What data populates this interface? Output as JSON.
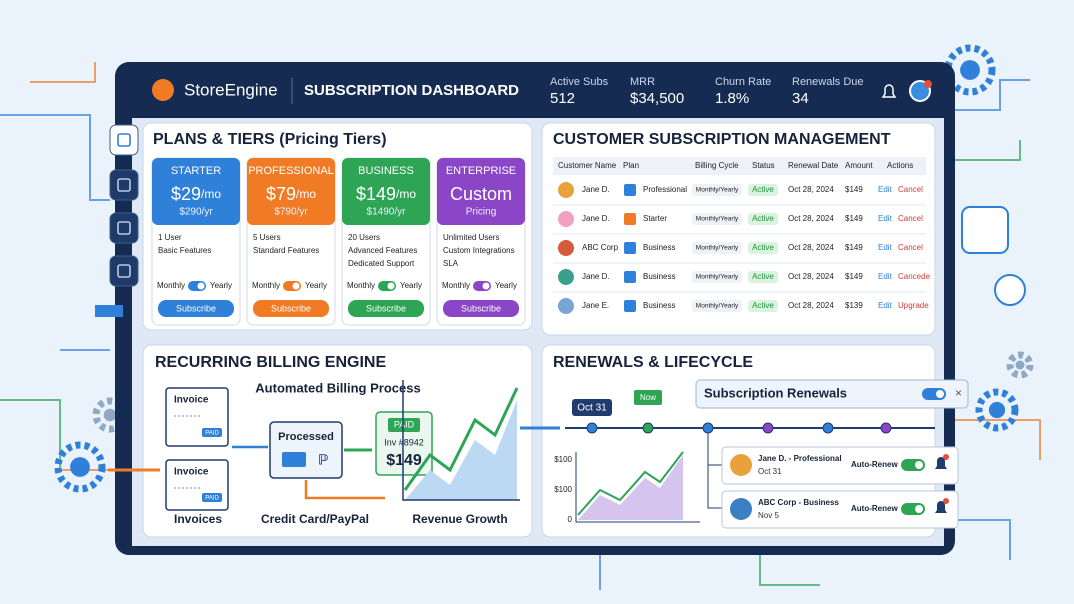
{
  "header": {
    "brand": "StoreEngine",
    "title": "SUBSCRIPTION DASHBOARD",
    "stats": [
      {
        "label": "Active Subs",
        "value": "512"
      },
      {
        "label": "MRR",
        "value": "$34,500"
      },
      {
        "label": "Churn Rate",
        "value": "1.8%"
      },
      {
        "label": "Renewals Due",
        "value": "34"
      }
    ]
  },
  "plans": {
    "title": "PLANS & TIERS (Pricing Tiers)",
    "cards": [
      {
        "name": "STARTER",
        "price": "$29",
        "unit": "/mo",
        "sub": "$290/yr",
        "features": [
          "1 User",
          "Basic Features"
        ],
        "toggle": [
          "Monthly",
          "Yearly"
        ],
        "button": "Subscribe",
        "color": "#2f80d9"
      },
      {
        "name": "PROFESSIONAL",
        "price": "$79",
        "unit": "/mo",
        "sub": "$790/yr",
        "features": [
          "5 Users",
          "Standard Features"
        ],
        "toggle": [
          "Monthly",
          "Yearly"
        ],
        "button": "Subscribe",
        "color": "#f07b24"
      },
      {
        "name": "BUSINESS",
        "price": "$149",
        "unit": "/mo",
        "sub": "$1490/yr",
        "features": [
          "20 Users",
          "Advanced Features",
          "Dedicated Support"
        ],
        "toggle": [
          "Monthly",
          "Yearly"
        ],
        "button": "Subscribe",
        "color": "#2ea455"
      },
      {
        "name": "ENTERPRISE",
        "price": "Custom",
        "sub": "Pricing",
        "features": [
          "Unlimited Users",
          "Custom Integrations",
          "SLA"
        ],
        "toggle": [
          "Monthly",
          "Yearly"
        ],
        "button": "Subscribe",
        "color": "#8a46c6"
      }
    ]
  },
  "customers": {
    "title": "CUSTOMER SUBSCRIPTION MANAGEMENT",
    "columns": [
      "Customer Name",
      "Plan",
      "Billing Cycle",
      "Status",
      "Renewal Date",
      "Amount",
      "Actions"
    ],
    "rows": [
      [
        "Jane D.",
        "Professional",
        "Monthly/Yearly",
        "Active",
        "Oct 28, 2024",
        "$149",
        "Edit",
        "Cancel"
      ],
      [
        "Jane D.",
        "Starter",
        "Monthly/Yearly",
        "Active",
        "Oct 28, 2024",
        "$149",
        "Edit",
        "Cancel"
      ],
      [
        "ABC Corp",
        "Business",
        "Monthly/Yearly",
        "Active",
        "Oct 28, 2024",
        "$149",
        "Edit",
        "Cancel"
      ],
      [
        "Jane D.",
        "Business",
        "Monthly/Yearly",
        "Active",
        "Oct 28, 2024",
        "$149",
        "Edit",
        "Cancede"
      ],
      [
        "Jane E.",
        "Business",
        "Monthly/Yearly",
        "Active",
        "Oct 28, 2024",
        "$139",
        "Edit",
        "Upgrade"
      ]
    ]
  },
  "billing": {
    "title": "RECURRING BILLING ENGINE",
    "subtitle": "Automated Billing Process",
    "invoice": "Invoice",
    "paid": "PAID",
    "invoices_label": "Invoices",
    "processed": "Processed",
    "payment_label": "Credit Card/PayPal",
    "receipt": {
      "badge": "PAID",
      "number": "Inv #8942",
      "amount": "$149"
    },
    "growth_label": "Revenue Growth"
  },
  "renewals": {
    "title": "RENEWALS & LIFECYCLE",
    "date_badge": "Oct 31",
    "now_badge": "Now",
    "popup_title": "Subscription Renewals",
    "axis_labels": [
      "$100",
      "$100",
      "0"
    ],
    "items": [
      {
        "name": "Jane D. - Professional",
        "date": "Oct 31",
        "status": "Auto-Renew"
      },
      {
        "name": "ABC Corp - Business",
        "date": "Nov 5",
        "status": "Auto-Renew"
      }
    ]
  }
}
